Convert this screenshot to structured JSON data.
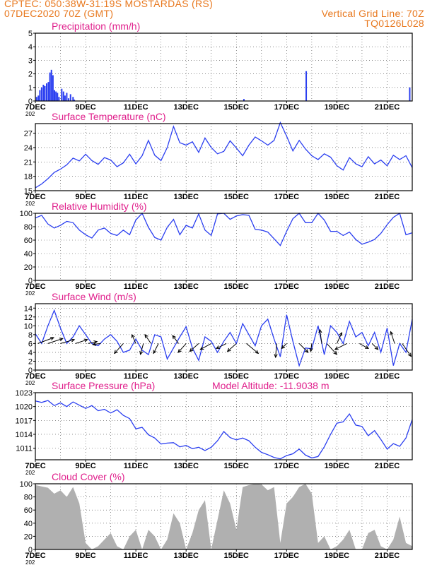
{
  "header": {
    "line1": "CPTEC:   050:38W-31:19S   MOSTARDAS (RS)",
    "line2": "07DEC2020 70Z (GMT)",
    "grid_note": "Vertical Grid Line: 70Z",
    "model_code": "TQ0126L028"
  },
  "x_tick_labels": [
    "7DEC",
    "9DEC",
    "11DEC",
    "13DEC",
    "15DEC",
    "17DEC",
    "19DEC",
    "21DEC"
  ],
  "x_tick_sublabel": "202",
  "colors": {
    "title": "#e0208c",
    "header": "#e8781e",
    "line": "#2b3ff0",
    "cloud": "#b0b0b0",
    "axis": "#000000"
  },
  "chart_data": [
    {
      "type": "bar",
      "title": "Precipitation (mm/h)",
      "ylim": [
        0,
        5
      ],
      "yticks": [
        0,
        1,
        2,
        3,
        4,
        5
      ],
      "x_range_days": [
        7,
        22
      ],
      "events": [
        {
          "day": 7.05,
          "value": 0.3
        },
        {
          "day": 7.12,
          "value": 0.4
        },
        {
          "day": 7.18,
          "value": 0.8
        },
        {
          "day": 7.25,
          "value": 1.0
        },
        {
          "day": 7.32,
          "value": 1.2
        },
        {
          "day": 7.38,
          "value": 1.1
        },
        {
          "day": 7.45,
          "value": 1.3
        },
        {
          "day": 7.52,
          "value": 1.4
        },
        {
          "day": 7.58,
          "value": 2.1
        },
        {
          "day": 7.64,
          "value": 2.3
        },
        {
          "day": 7.7,
          "value": 1.9
        },
        {
          "day": 7.76,
          "value": 0.8
        },
        {
          "day": 7.82,
          "value": 0.7
        },
        {
          "day": 7.88,
          "value": 0.6
        },
        {
          "day": 7.94,
          "value": 0.3
        },
        {
          "day": 8.05,
          "value": 0.9
        },
        {
          "day": 8.12,
          "value": 0.7
        },
        {
          "day": 8.18,
          "value": 0.4
        },
        {
          "day": 8.25,
          "value": 0.6
        },
        {
          "day": 8.32,
          "value": 0.2
        },
        {
          "day": 8.4,
          "value": 0.5
        },
        {
          "day": 8.5,
          "value": 0.3
        },
        {
          "day": 8.55,
          "value": 0.1
        },
        {
          "day": 15.3,
          "value": 0.15
        },
        {
          "day": 17.78,
          "value": 2.2
        },
        {
          "day": 21.9,
          "value": 1.0
        }
      ]
    },
    {
      "type": "line",
      "title": "Surface Temperature (nC)",
      "ylim": [
        15,
        29
      ],
      "yticks": [
        15,
        18,
        21,
        24,
        27
      ],
      "x_days": [
        7.0,
        7.25,
        7.5,
        7.75,
        8.0,
        8.25,
        8.5,
        8.75,
        9.0,
        9.25,
        9.5,
        9.75,
        10.0,
        10.25,
        10.5,
        10.75,
        11.0,
        11.25,
        11.5,
        11.75,
        12.0,
        12.25,
        12.5,
        12.75,
        13.0,
        13.25,
        13.5,
        13.75,
        14.0,
        14.25,
        14.5,
        14.75,
        15.0,
        15.25,
        15.5,
        15.75,
        16.0,
        16.25,
        16.5,
        16.75,
        17.0,
        17.25,
        17.5,
        17.75,
        18.0,
        18.25,
        18.5,
        18.75,
        19.0,
        19.25,
        19.5,
        19.75,
        20.0,
        20.25,
        20.5,
        20.75,
        21.0,
        21.25,
        21.5,
        21.75,
        22.0
      ],
      "y": [
        15.6,
        16.4,
        17.5,
        18.8,
        19.5,
        20.4,
        21.8,
        21.2,
        22.6,
        21.3,
        20.5,
        21.9,
        21.4,
        20.0,
        20.8,
        22.6,
        20.6,
        22.3,
        25.5,
        22.4,
        21.3,
        24.0,
        28.4,
        25.0,
        24.5,
        25.2,
        23.0,
        26.0,
        24.0,
        22.7,
        23.2,
        25.4,
        23.9,
        22.3,
        24.5,
        26.2,
        25.4,
        24.5,
        25.5,
        29.2,
        26.4,
        23.3,
        25.5,
        23.7,
        22.3,
        21.5,
        22.7,
        22.0,
        20.2,
        19.3,
        21.9,
        20.6,
        20.0,
        22.1,
        20.6,
        21.4,
        20.2,
        22.4,
        21.5,
        22.3,
        19.8
      ]
    },
    {
      "type": "line",
      "title": "Relative Humidity (%)",
      "ylim": [
        0,
        100
      ],
      "yticks": [
        0,
        20,
        40,
        60,
        80,
        100
      ],
      "x_days": [
        7.0,
        7.25,
        7.5,
        7.75,
        8.0,
        8.25,
        8.5,
        8.75,
        9.0,
        9.25,
        9.5,
        9.75,
        10.0,
        10.25,
        10.5,
        10.75,
        11.0,
        11.25,
        11.5,
        11.75,
        12.0,
        12.25,
        12.5,
        12.75,
        13.0,
        13.25,
        13.5,
        13.75,
        14.0,
        14.25,
        14.5,
        14.75,
        15.0,
        15.25,
        15.5,
        15.75,
        16.0,
        16.25,
        16.5,
        16.75,
        17.0,
        17.25,
        17.5,
        17.75,
        18.0,
        18.25,
        18.5,
        18.75,
        19.0,
        19.25,
        19.5,
        19.75,
        20.0,
        20.25,
        20.5,
        20.75,
        21.0,
        21.25,
        21.5,
        21.75,
        22.0
      ],
      "y": [
        93,
        97,
        84,
        78,
        82,
        88,
        86,
        75,
        68,
        63,
        75,
        78,
        70,
        67,
        75,
        68,
        90,
        100,
        79,
        64,
        60,
        79,
        91,
        68,
        82,
        78,
        99,
        75,
        67,
        99,
        100,
        91,
        96,
        98,
        97,
        76,
        75,
        72,
        62,
        52,
        73,
        92,
        100,
        86,
        86,
        100,
        90,
        73,
        73,
        67,
        72,
        61,
        54,
        57,
        61,
        70,
        83,
        94,
        100,
        68,
        71
      ]
    },
    {
      "type": "line",
      "title": "Surface Wind (m/s)",
      "ylim": [
        0,
        15
      ],
      "yticks": [
        0,
        2,
        4,
        6,
        8,
        10,
        12,
        14
      ],
      "x_days": [
        7.0,
        7.25,
        7.5,
        7.75,
        8.0,
        8.25,
        8.5,
        8.75,
        9.0,
        9.25,
        9.5,
        9.75,
        10.0,
        10.25,
        10.5,
        10.75,
        11.0,
        11.25,
        11.5,
        11.75,
        12.0,
        12.25,
        12.5,
        12.75,
        13.0,
        13.25,
        13.5,
        13.75,
        14.0,
        14.25,
        14.5,
        14.75,
        15.0,
        15.25,
        15.5,
        15.75,
        16.0,
        16.25,
        16.5,
        16.75,
        17.0,
        17.25,
        17.5,
        17.75,
        18.0,
        18.25,
        18.5,
        18.75,
        19.0,
        19.25,
        19.5,
        19.75,
        20.0,
        20.25,
        20.5,
        20.75,
        21.0,
        21.25,
        21.5,
        21.75,
        22.0
      ],
      "y": [
        8.2,
        6.0,
        10.0,
        13.5,
        9.5,
        6.0,
        7.5,
        10.0,
        8.0,
        6.0,
        5.5,
        7.0,
        8.0,
        6.5,
        4.0,
        4.5,
        7.0,
        4.5,
        3.5,
        8.0,
        7.5,
        2.5,
        5.0,
        7.5,
        9.8,
        5.0,
        2.2,
        7.5,
        6.5,
        4.0,
        6.5,
        8.5,
        6.0,
        10.5,
        8.0,
        5.5,
        10.0,
        11.5,
        7.0,
        3.0,
        12.5,
        6.5,
        1.0,
        5.0,
        4.8,
        10.0,
        3.5,
        10.0,
        8.5,
        6.0,
        11.0,
        7.5,
        8.5,
        5.5,
        8.5,
        4.0,
        9.5,
        1.0,
        6.0,
        4.0,
        11.5
      ],
      "wind_arrows": [
        {
          "day": 7.1,
          "dx": 1.6,
          "dy": -0.6
        },
        {
          "day": 7.5,
          "dx": 1.5,
          "dy": -0.5
        },
        {
          "day": 8.0,
          "dx": 1.4,
          "dy": -0.4
        },
        {
          "day": 8.6,
          "dx": 1.2,
          "dy": -0.4
        },
        {
          "day": 9.1,
          "dx": 0.9,
          "dy": -0.2
        },
        {
          "day": 9.6,
          "dx": -0.8,
          "dy": 0.1
        },
        {
          "day": 10.5,
          "dx": -0.9,
          "dy": 1.0
        },
        {
          "day": 11.0,
          "dx": -0.4,
          "dy": -0.9
        },
        {
          "day": 11.3,
          "dx": -0.3,
          "dy": 1.1
        },
        {
          "day": 11.6,
          "dx": -0.6,
          "dy": -0.9
        },
        {
          "day": 11.9,
          "dx": -0.5,
          "dy": 1.0
        },
        {
          "day": 12.7,
          "dx": -0.6,
          "dy": -0.8
        },
        {
          "day": 13.0,
          "dx": -0.8,
          "dy": 0.9
        },
        {
          "day": 13.5,
          "dx": -0.9,
          "dy": 0.8
        },
        {
          "day": 14.0,
          "dx": -1.1,
          "dy": 0.6
        },
        {
          "day": 14.6,
          "dx": -1.0,
          "dy": 0.5
        },
        {
          "day": 15.0,
          "dx": -0.9,
          "dy": 0.8
        },
        {
          "day": 15.4,
          "dx": 1.2,
          "dy": 1.0
        },
        {
          "day": 16.6,
          "dx": -0.1,
          "dy": 1.4
        },
        {
          "day": 17.0,
          "dx": -0.5,
          "dy": 0.5
        },
        {
          "day": 17.5,
          "dx": 0.9,
          "dy": 0.9
        },
        {
          "day": 18.0,
          "dx": -0.1,
          "dy": 0.8
        },
        {
          "day": 18.4,
          "dx": -0.2,
          "dy": -1.4
        },
        {
          "day": 18.6,
          "dx": 1.0,
          "dy": 1.1
        },
        {
          "day": 19.0,
          "dx": 0.5,
          "dy": -1.1
        },
        {
          "day": 19.4,
          "dx": -1.2,
          "dy": 0.6
        },
        {
          "day": 19.9,
          "dx": 0.9,
          "dy": 0.5
        },
        {
          "day": 20.4,
          "dx": 0.6,
          "dy": 0.6
        },
        {
          "day": 21.3,
          "dx": -0.4,
          "dy": -1.2
        },
        {
          "day": 21.6,
          "dx": 0.9,
          "dy": 1.3
        }
      ]
    },
    {
      "type": "line",
      "title": "Surface Pressure (hPa)",
      "annotation": "Model Altitude: -11.9038 m",
      "ylim": [
        1008.5,
        1023
      ],
      "yticks": [
        1011,
        1014,
        1017,
        1020,
        1023
      ],
      "x_days": [
        7.0,
        7.25,
        7.5,
        7.75,
        8.0,
        8.25,
        8.5,
        8.75,
        9.0,
        9.25,
        9.5,
        9.75,
        10.0,
        10.25,
        10.5,
        10.75,
        11.0,
        11.25,
        11.5,
        11.75,
        12.0,
        12.25,
        12.5,
        12.75,
        13.0,
        13.25,
        13.5,
        13.75,
        14.0,
        14.25,
        14.5,
        14.75,
        15.0,
        15.25,
        15.5,
        15.75,
        16.0,
        16.25,
        16.5,
        16.75,
        17.0,
        17.25,
        17.5,
        17.75,
        18.0,
        18.25,
        18.5,
        18.75,
        19.0,
        19.25,
        19.5,
        19.75,
        20.0,
        20.25,
        20.5,
        20.75,
        21.0,
        21.25,
        21.5,
        21.75,
        22.0
      ],
      "y": [
        1021.2,
        1020.9,
        1021.3,
        1020.2,
        1020.8,
        1020.0,
        1021.0,
        1020.3,
        1019.6,
        1020.2,
        1019.1,
        1019.4,
        1018.6,
        1019.3,
        1018.1,
        1017.4,
        1015.2,
        1015.5,
        1013.9,
        1013.2,
        1011.9,
        1012.1,
        1012.2,
        1011.3,
        1011.6,
        1010.9,
        1011.2,
        1010.5,
        1011.2,
        1012.6,
        1014.6,
        1013.3,
        1012.8,
        1013.2,
        1012.6,
        1011.2,
        1010.1,
        1009.6,
        1009.0,
        1008.7,
        1009.4,
        1009.8,
        1010.8,
        1009.5,
        1008.9,
        1009.2,
        1011.3,
        1014.0,
        1016.4,
        1016.7,
        1018.4,
        1016.0,
        1015.7,
        1013.7,
        1014.8,
        1012.9,
        1010.8,
        1012.0,
        1011.4,
        1013.2,
        1017.2
      ]
    },
    {
      "type": "area",
      "title": "Cloud Cover (%)",
      "ylim": [
        0,
        100
      ],
      "yticks": [
        0,
        20,
        40,
        60,
        80,
        100
      ],
      "x_days": [
        7.0,
        7.25,
        7.5,
        7.75,
        8.0,
        8.25,
        8.5,
        8.75,
        9.0,
        9.25,
        9.5,
        9.75,
        10.0,
        10.25,
        10.5,
        10.75,
        11.0,
        11.25,
        11.5,
        11.75,
        12.0,
        12.25,
        12.5,
        12.75,
        13.0,
        13.25,
        13.5,
        13.75,
        14.0,
        14.25,
        14.5,
        14.75,
        15.0,
        15.25,
        15.5,
        15.75,
        16.0,
        16.25,
        16.5,
        16.75,
        17.0,
        17.25,
        17.5,
        17.75,
        18.0,
        18.25,
        18.5,
        18.75,
        19.0,
        19.25,
        19.5,
        19.75,
        20.0,
        20.25,
        20.5,
        20.75,
        21.0,
        21.25,
        21.5,
        21.75,
        22.0
      ],
      "y": [
        98,
        96,
        94,
        85,
        90,
        80,
        95,
        70,
        10,
        0,
        5,
        15,
        25,
        5,
        0,
        20,
        30,
        0,
        30,
        20,
        0,
        15,
        55,
        40,
        0,
        25,
        60,
        75,
        0,
        45,
        90,
        70,
        30,
        95,
        98,
        100,
        99,
        90,
        95,
        10,
        70,
        80,
        95,
        100,
        85,
        10,
        20,
        0,
        5,
        15,
        30,
        0,
        0,
        25,
        30,
        5,
        0,
        15,
        50,
        10,
        5
      ]
    }
  ]
}
